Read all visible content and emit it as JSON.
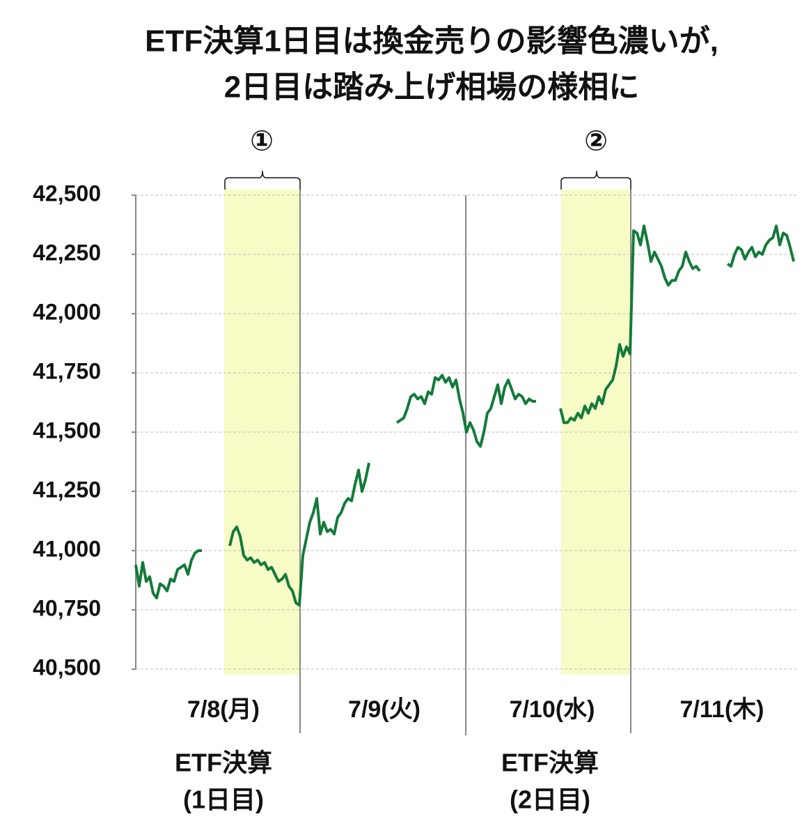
{
  "chart_data": {
    "type": "line",
    "title": [
      "ETF決算1日目は換金売りの影響色濃いが,",
      "2日目は踏み上げ相場の様相に"
    ],
    "series": [
      {
        "color": "#137a3a",
        "values": [
          40940,
          40850,
          40950,
          40870,
          40890,
          40820,
          40800,
          40860,
          40850,
          40830,
          40880,
          40870,
          40920,
          40930,
          40940,
          40900,
          40960,
          40990,
          41000,
          41000,
          null,
          null,
          null,
          null,
          null,
          null,
          null,
          41020,
          41080,
          41100,
          41060,
          40980,
          40960,
          40970,
          40950,
          40960,
          40940,
          40950,
          40920,
          40930,
          40900,
          40870,
          40880,
          40900,
          40850,
          40830,
          40780,
          40770,
          40980,
          41050,
          41120,
          41160,
          41220,
          41070,
          41120,
          41080,
          41090,
          41070,
          41140,
          41160,
          41200,
          41220,
          41210,
          41280,
          41340,
          41250,
          41300,
          41370,
          null,
          null,
          null,
          null,
          null,
          null,
          null,
          41540,
          41550,
          41560,
          41600,
          41650,
          41660,
          41640,
          41650,
          41620,
          41670,
          41660,
          41730,
          41720,
          41740,
          41710,
          41730,
          41690,
          41720,
          41640,
          41580,
          41500,
          41540,
          41510,
          41460,
          41440,
          41500,
          41580,
          41600,
          41650,
          41700,
          41620,
          41690,
          41720,
          41680,
          41640,
          41660,
          41650,
          41620,
          41640,
          41630,
          41630,
          null,
          null,
          null,
          null,
          null,
          null,
          41600,
          41540,
          41540,
          41560,
          41550,
          41580,
          41560,
          41610,
          41580,
          41620,
          41600,
          41650,
          41620,
          41680,
          41700,
          41720,
          41780,
          41870,
          41820,
          41860,
          41830,
          42350,
          42340,
          42290,
          42370,
          42300,
          42220,
          42260,
          42230,
          42200,
          42150,
          42120,
          42140,
          42140,
          42180,
          42200,
          42260,
          42220,
          42190,
          42200,
          42180,
          null,
          null,
          null,
          null,
          null,
          null,
          null,
          42210,
          42200,
          42250,
          42280,
          42270,
          42230,
          42260,
          42280,
          42240,
          42260,
          42250,
          42290,
          42310,
          42320,
          42370,
          42290,
          42340,
          42330,
          42280,
          42220
        ]
      }
    ],
    "ylim": [
      40500,
      42500
    ],
    "yticks": [
      {
        "value": 40500,
        "label": "40,500"
      },
      {
        "value": 40750,
        "label": "40,750"
      },
      {
        "value": 41000,
        "label": "41,000"
      },
      {
        "value": 41250,
        "label": "41,250"
      },
      {
        "value": 41500,
        "label": "41,500"
      },
      {
        "value": 41750,
        "label": "41,750"
      },
      {
        "value": 42000,
        "label": "42,000"
      },
      {
        "value": 42250,
        "label": "42,250"
      },
      {
        "value": 42500,
        "label": "42,500"
      }
    ],
    "grid": true,
    "day_labels": [
      "7/8(月)",
      "7/9(火)",
      "7/10(水)",
      "7/11(木)"
    ],
    "markers": [
      "①",
      "②"
    ],
    "notes": [
      [
        "ETF決算",
        "(1日目)"
      ],
      [
        "ETF決算",
        "(2日目)"
      ]
    ]
  }
}
